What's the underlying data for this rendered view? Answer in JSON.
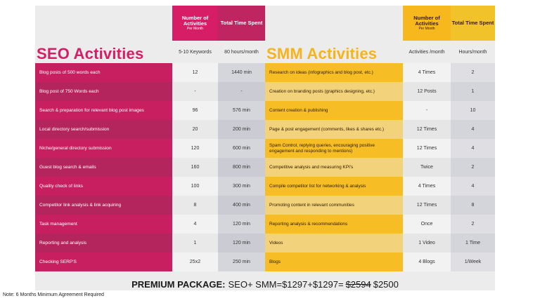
{
  "headers": {
    "seo_number": "Number of Activities",
    "seo_number_sub": "Per Month",
    "seo_time": "Total Time Spent",
    "smm_number": "Number of Activities",
    "smm_number_sub": "Per Month",
    "smm_time": "Total Time Spent"
  },
  "sections": {
    "seo_title": "SEO Activities",
    "seo_summary_1": "5-10 Keywords",
    "seo_summary_2": "80 hours/month",
    "smm_title": "SMM Activities",
    "smm_summary_1": "Activities /month",
    "smm_summary_2": "Hours/month"
  },
  "rows": [
    {
      "seo": "Blog posts of 500 words each",
      "seo_n": "12",
      "seo_t": "1440 min",
      "smm": "Research on ideas (infographics and blog post, etc.)",
      "smm_n": "4 Times",
      "smm_t": "2"
    },
    {
      "seo": "Blog post of 750 Words each",
      "seo_n": "-",
      "seo_t": "-",
      "smm": "Creation on branding posts (graphics designing, etc.)",
      "smm_n": "12 Posts",
      "smm_t": "1"
    },
    {
      "seo": "Search & preparation for relevant blog post images",
      "seo_n": "96",
      "seo_t": "576 min",
      "smm": "Content creation & publishing",
      "smm_n": "-",
      "smm_t": "10"
    },
    {
      "seo": "Local directory search/submission",
      "seo_n": "20",
      "seo_t": "200 min",
      "smm": "Page & post engagement (comments, likes & shares etc.)",
      "smm_n": "12 Times",
      "smm_t": "4"
    },
    {
      "seo": "Niche/general directory submission",
      "seo_n": "120",
      "seo_t": "600 min",
      "smm": "Spam Control, replying queries, encouraging positive engagement and responding to mentions)",
      "smm_n": "12 Times",
      "smm_t": "4"
    },
    {
      "seo": "Guest blog search & emails",
      "seo_n": "160",
      "seo_t": "800 min",
      "smm": "Competitive analysis and measuring KPI's",
      "smm_n": "Twice",
      "smm_t": "2"
    },
    {
      "seo": "Quality check of links",
      "seo_n": "100",
      "seo_t": "300 min",
      "smm": "Compile competitor list for networking & analysis",
      "smm_n": "4 Times",
      "smm_t": "4"
    },
    {
      "seo": "Competitor link analysis & link acquiring",
      "seo_n": "8",
      "seo_t": "400 min",
      "smm": "Promoting content in relevant communities",
      "smm_n": "12 Times",
      "smm_t": "8"
    },
    {
      "seo": "Task management",
      "seo_n": "4",
      "seo_t": "120 min",
      "smm": "Reporting analysis & recommendations",
      "smm_n": "Once",
      "smm_t": "2"
    },
    {
      "seo": "Reporting and analysis",
      "seo_n": "1",
      "seo_t": "120 min",
      "smm": "Videos",
      "smm_n": "1 Video",
      "smm_t": "1 Time"
    },
    {
      "seo": "Checking SERP'S",
      "seo_n": "25x2",
      "seo_t": "250 min",
      "smm": "Blogs",
      "smm_n": "4 Blogs",
      "smm_t": "1/Week"
    }
  ],
  "premium": {
    "label": "PREMIUM PACKAGE:",
    "formula": "SEO+ SMM=$1297+$1297=",
    "old_price": "$2594",
    "new_price": "$2500"
  },
  "note": "Note: 6 Months Minimum Agreement Required",
  "colors": {
    "seo_accent": "#d81d67",
    "smm_accent": "#f5b41c"
  }
}
